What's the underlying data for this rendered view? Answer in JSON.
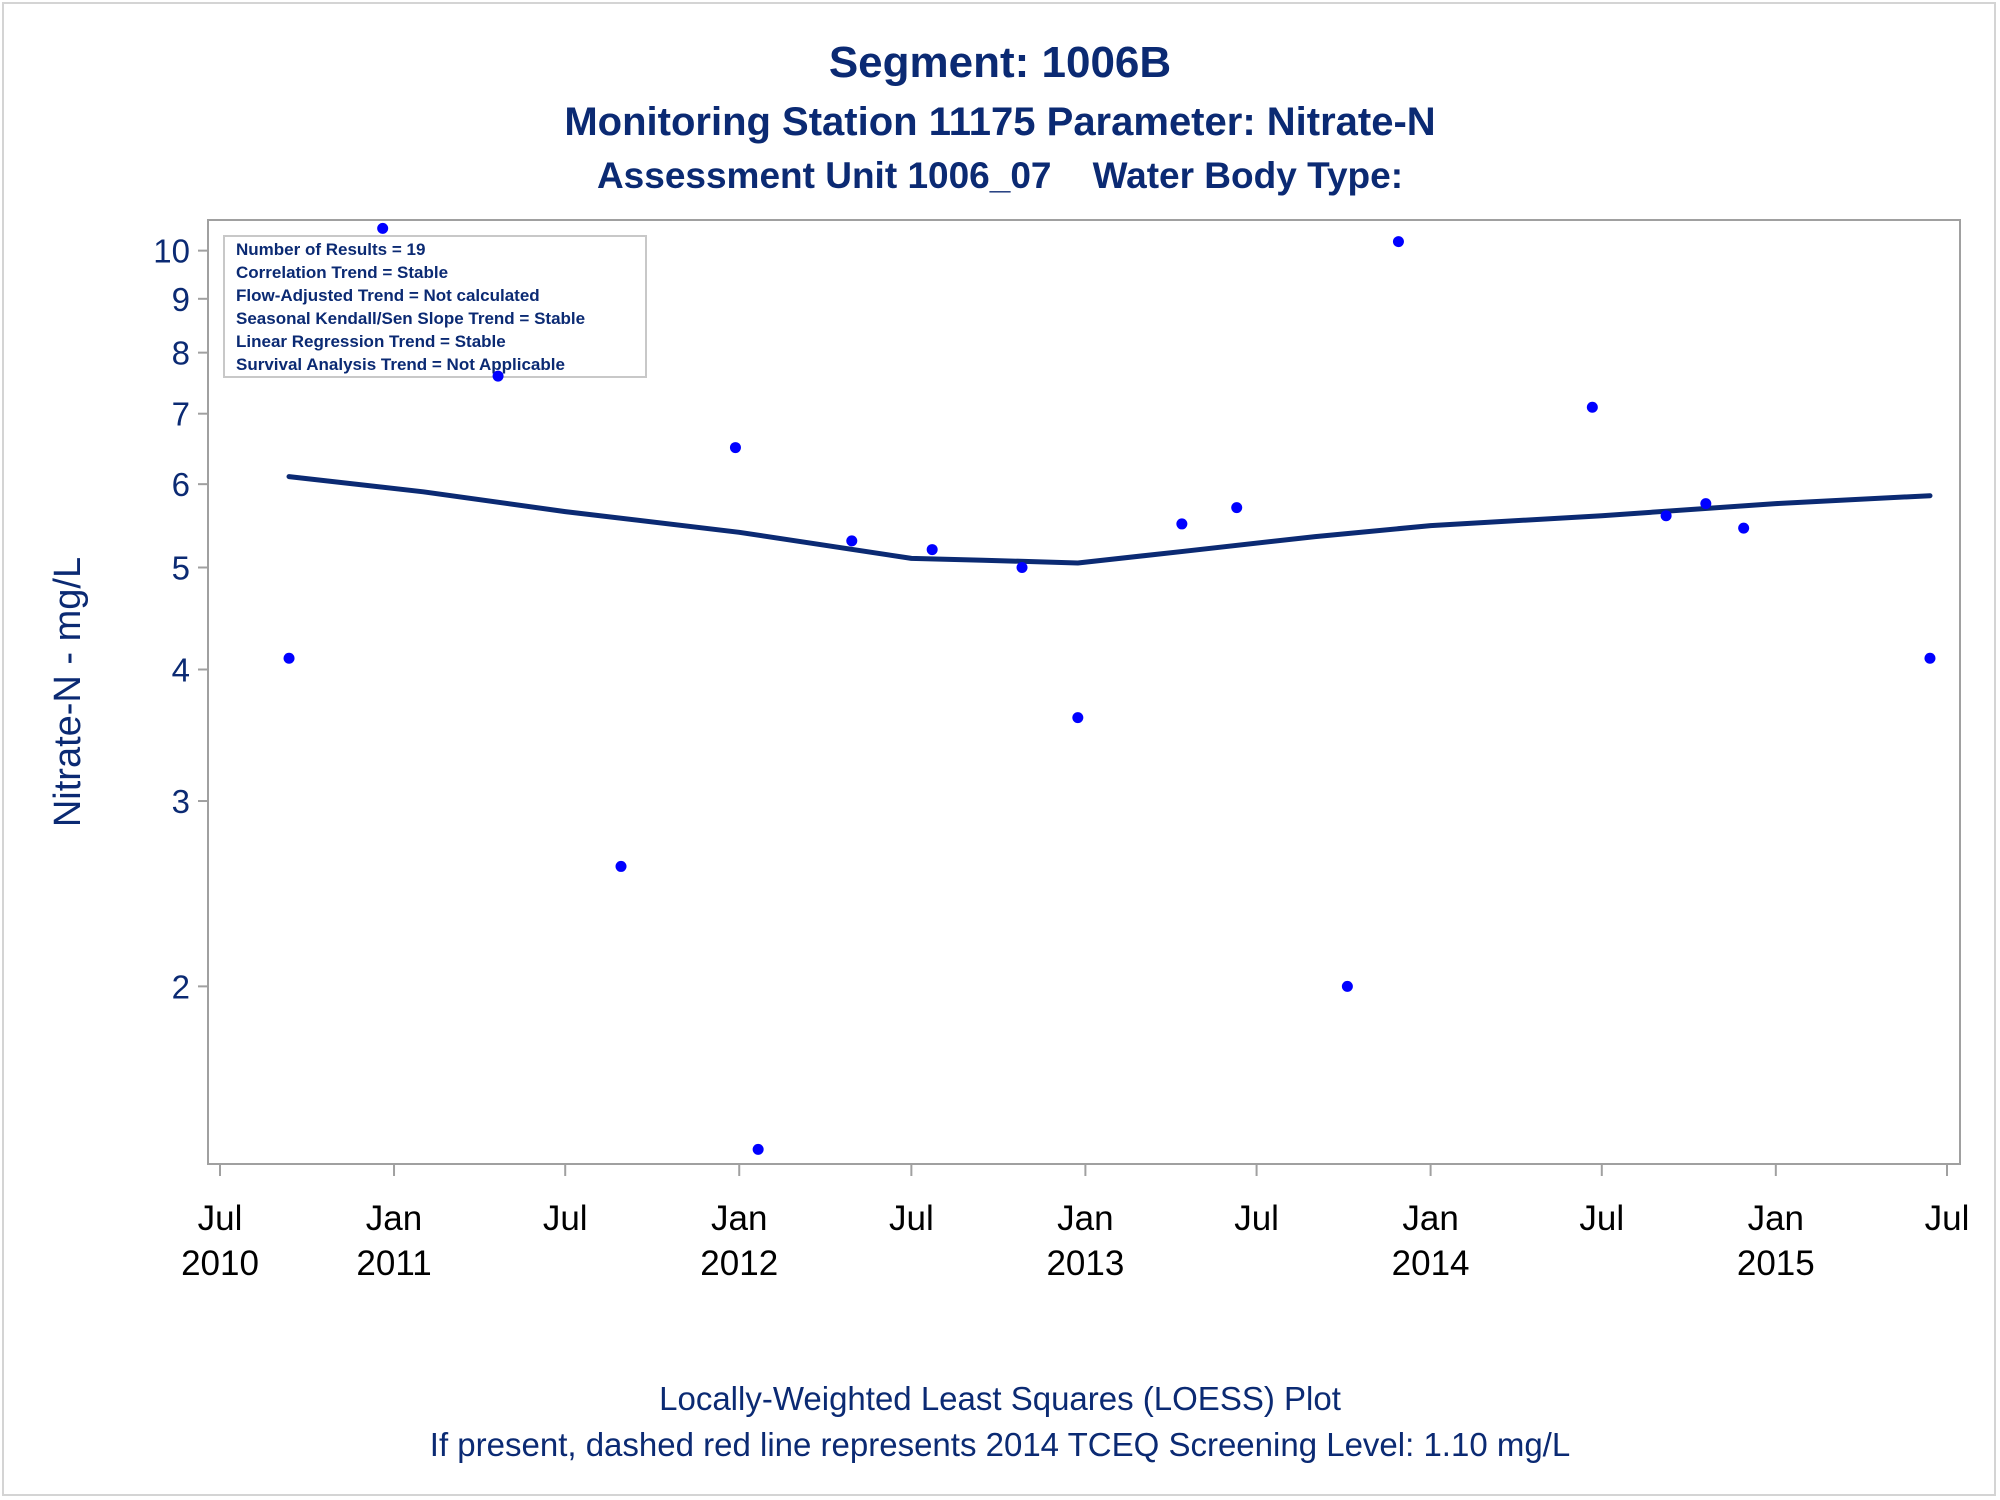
{
  "title": "Segment: 1006B",
  "subtitle": "Monitoring Station 11175 Parameter: Nitrate-N",
  "subtitle2": "Assessment Unit 1006_07    Water Body Type:",
  "footnote1": "Locally-Weighted Least Squares (LOESS) Plot",
  "footnote2": "If present, dashed red line represents 2014 TCEQ Screening Level: 1.10 mg/L",
  "info_box": [
    "Number of Results = 19",
    "Correlation Trend = Stable",
    "Flow-Adjusted Trend = Not calculated",
    "Seasonal Kendall/Sen Slope Trend = Stable",
    "Linear Regression Trend = Stable",
    "Survival Analysis Trend = Not Applicable"
  ],
  "colors": {
    "text": "#0b2a73",
    "points": "#0000ff",
    "loess": "#0b2a73",
    "frame": "#a0a0a0"
  },
  "chart_data": {
    "type": "scatter",
    "ylabel": "Nitrate-N - mg/L",
    "yscale": "log",
    "ylim": [
      1.38,
      10.6
    ],
    "yticks": [
      2,
      3,
      4,
      5,
      6,
      7,
      8,
      9,
      10
    ],
    "xlim": [
      "2010-07-01",
      "2015-07-01"
    ],
    "xticks": [
      {
        "date": "2010-07-01",
        "label": "Jul",
        "year": "2010"
      },
      {
        "date": "2011-01-01",
        "label": "Jan",
        "year": "2011"
      },
      {
        "date": "2011-07-01",
        "label": "Jul",
        "year": ""
      },
      {
        "date": "2012-01-01",
        "label": "Jan",
        "year": "2012"
      },
      {
        "date": "2012-07-01",
        "label": "Jul",
        "year": ""
      },
      {
        "date": "2013-01-01",
        "label": "Jan",
        "year": "2013"
      },
      {
        "date": "2013-07-01",
        "label": "Jul",
        "year": ""
      },
      {
        "date": "2014-01-01",
        "label": "Jan",
        "year": "2014"
      },
      {
        "date": "2014-07-01",
        "label": "Jul",
        "year": ""
      },
      {
        "date": "2015-01-01",
        "label": "Jan",
        "year": "2015"
      },
      {
        "date": "2015-07-01",
        "label": "Jul",
        "year": ""
      }
    ],
    "points": [
      {
        "x": "2010-09-12",
        "y": 4.1
      },
      {
        "x": "2010-12-20",
        "y": 10.5
      },
      {
        "x": "2011-04-21",
        "y": 7.6
      },
      {
        "x": "2011-08-29",
        "y": 2.6
      },
      {
        "x": "2011-12-28",
        "y": 6.5
      },
      {
        "x": "2012-01-21",
        "y": 1.4
      },
      {
        "x": "2012-04-29",
        "y": 5.3
      },
      {
        "x": "2012-07-23",
        "y": 5.2
      },
      {
        "x": "2012-10-26",
        "y": 5.0
      },
      {
        "x": "2012-12-24",
        "y": 3.6
      },
      {
        "x": "2013-04-13",
        "y": 5.5
      },
      {
        "x": "2013-06-10",
        "y": 5.7
      },
      {
        "x": "2013-10-05",
        "y": 2.0
      },
      {
        "x": "2013-11-28",
        "y": 10.2
      },
      {
        "x": "2014-06-21",
        "y": 7.1
      },
      {
        "x": "2014-09-07",
        "y": 5.6
      },
      {
        "x": "2014-10-19",
        "y": 5.75
      },
      {
        "x": "2014-11-28",
        "y": 5.45
      },
      {
        "x": "2015-06-13",
        "y": 4.1
      }
    ],
    "loess": [
      {
        "x": "2010-09-12",
        "y": 6.1
      },
      {
        "x": "2011-02-01",
        "y": 5.9
      },
      {
        "x": "2011-07-01",
        "y": 5.65
      },
      {
        "x": "2012-01-01",
        "y": 5.4
      },
      {
        "x": "2012-07-01",
        "y": 5.1
      },
      {
        "x": "2012-09-15",
        "y": 5.08
      },
      {
        "x": "2012-12-24",
        "y": 5.05
      },
      {
        "x": "2013-04-15",
        "y": 5.18
      },
      {
        "x": "2013-09-01",
        "y": 5.35
      },
      {
        "x": "2014-01-01",
        "y": 5.48
      },
      {
        "x": "2014-07-01",
        "y": 5.6
      },
      {
        "x": "2015-01-01",
        "y": 5.75
      },
      {
        "x": "2015-06-13",
        "y": 5.85
      }
    ]
  }
}
